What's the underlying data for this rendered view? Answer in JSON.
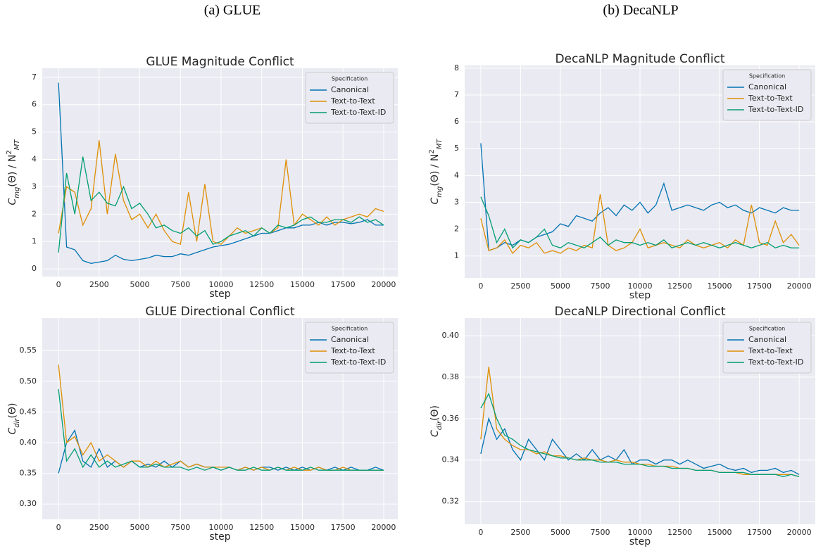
{
  "captions": [
    "(a) GLUE",
    "(b) DecaNLP"
  ],
  "chart_data": [
    {
      "type": "line",
      "title": "GLUE Magnitude Conflict",
      "xlabel": "step",
      "ylabel": [
        [
          "C",
          ""
        ],
        [
          "mg",
          "sub"
        ],
        [
          "(Θ) / N",
          ""
        ],
        [
          "2",
          "sup"
        ],
        [
          "MT",
          "sub"
        ]
      ],
      "legend_title": "Specification",
      "legend": "upper right",
      "grid": true,
      "xlim": [
        -1000,
        20870
      ],
      "ylim": [
        -0.28,
        7.33
      ],
      "xticks": [
        0,
        2500,
        5000,
        7500,
        10000,
        12500,
        15000,
        17500,
        20000
      ],
      "yticks": [
        0,
        1,
        2,
        3,
        4,
        5,
        6,
        7
      ],
      "x": [
        0,
        500,
        1000,
        1500,
        2000,
        2500,
        3000,
        3500,
        4000,
        4500,
        5000,
        5500,
        6000,
        6500,
        7000,
        7500,
        8000,
        8500,
        9000,
        9500,
        10000,
        10500,
        11000,
        11500,
        12000,
        12500,
        13000,
        13500,
        14000,
        14500,
        15000,
        15500,
        16000,
        16500,
        17000,
        17500,
        18000,
        18500,
        19000,
        19500,
        20000
      ],
      "series": [
        {
          "name": "Canonical",
          "color": "#0173b2",
          "values": [
            6.8,
            0.8,
            0.7,
            0.3,
            0.2,
            0.25,
            0.3,
            0.5,
            0.35,
            0.3,
            0.35,
            0.4,
            0.5,
            0.45,
            0.45,
            0.55,
            0.5,
            0.6,
            0.7,
            0.8,
            0.85,
            0.9,
            1.0,
            1.1,
            1.2,
            1.3,
            1.3,
            1.4,
            1.5,
            1.5,
            1.6,
            1.6,
            1.7,
            1.6,
            1.7,
            1.7,
            1.65,
            1.7,
            1.8,
            1.6,
            1.6
          ]
        },
        {
          "name": "Text-to-Text",
          "color": "#de8f05",
          "values": [
            1.3,
            3.0,
            2.8,
            1.6,
            2.2,
            4.7,
            2.0,
            4.2,
            2.5,
            1.8,
            2.0,
            1.5,
            2.0,
            1.4,
            1.0,
            0.9,
            2.8,
            1.0,
            3.1,
            1.0,
            0.9,
            1.2,
            1.5,
            1.3,
            1.4,
            1.5,
            1.3,
            1.5,
            4.0,
            1.6,
            2.0,
            1.8,
            1.6,
            1.9,
            1.6,
            1.8,
            1.9,
            2.0,
            1.9,
            2.2,
            2.1
          ]
        },
        {
          "name": "Text-to-Text-ID",
          "color": "#029e73",
          "values": [
            0.6,
            3.5,
            2.0,
            4.1,
            2.5,
            2.8,
            2.4,
            2.3,
            3.0,
            2.2,
            2.4,
            2.0,
            1.5,
            1.6,
            1.4,
            1.3,
            1.5,
            1.2,
            1.4,
            0.9,
            1.0,
            1.2,
            1.3,
            1.4,
            1.2,
            1.5,
            1.3,
            1.6,
            1.5,
            1.6,
            1.8,
            1.9,
            1.7,
            1.7,
            1.8,
            1.8,
            1.7,
            1.9,
            1.7,
            1.8,
            1.6
          ]
        }
      ]
    },
    {
      "type": "line",
      "title": "DecaNLP Magnitude Conflict",
      "xlabel": "step",
      "ylabel": [
        [
          "C",
          ""
        ],
        [
          "mg",
          "sub"
        ],
        [
          "(Θ) / N",
          ""
        ],
        [
          "2",
          "sup"
        ],
        [
          "MT",
          "sub"
        ]
      ],
      "legend_title": "Specification",
      "legend": "upper right",
      "grid": true,
      "xlim": [
        -1013,
        21013
      ],
      "ylim": [
        0.18,
        8.1
      ],
      "xticks": [
        0,
        2500,
        5000,
        7500,
        10000,
        12500,
        15000,
        17500,
        20000
      ],
      "yticks": [
        1,
        2,
        3,
        4,
        5,
        6,
        7,
        8
      ],
      "x": [
        0,
        500,
        1000,
        1500,
        2000,
        2500,
        3000,
        3500,
        4000,
        4500,
        5000,
        5500,
        6000,
        6500,
        7000,
        7500,
        8000,
        8500,
        9000,
        9500,
        10000,
        10500,
        11000,
        11500,
        12000,
        12500,
        13000,
        13500,
        14000,
        14500,
        15000,
        15500,
        16000,
        16500,
        17000,
        17500,
        18000,
        18500,
        19000,
        19500,
        20000
      ],
      "series": [
        {
          "name": "Canonical",
          "color": "#0173b2",
          "values": [
            5.2,
            1.2,
            1.3,
            1.5,
            1.4,
            1.6,
            1.5,
            1.7,
            1.8,
            1.9,
            2.2,
            2.1,
            2.5,
            2.4,
            2.3,
            2.6,
            2.8,
            2.5,
            2.9,
            2.7,
            3.0,
            2.6,
            2.9,
            3.7,
            2.7,
            2.8,
            2.9,
            2.8,
            2.7,
            2.9,
            3.0,
            2.8,
            2.9,
            2.7,
            2.6,
            2.8,
            2.7,
            2.6,
            2.8,
            2.7,
            2.7
          ]
        },
        {
          "name": "Text-to-Text",
          "color": "#de8f05",
          "values": [
            2.4,
            1.2,
            1.3,
            1.6,
            1.1,
            1.4,
            1.3,
            1.5,
            1.1,
            1.2,
            1.1,
            1.3,
            1.2,
            1.4,
            1.3,
            3.3,
            1.4,
            1.2,
            1.3,
            1.5,
            2.0,
            1.3,
            1.4,
            1.5,
            1.4,
            1.3,
            1.6,
            1.4,
            1.3,
            1.4,
            1.5,
            1.3,
            1.6,
            1.4,
            2.9,
            1.5,
            1.4,
            2.3,
            1.5,
            1.8,
            1.4
          ]
        },
        {
          "name": "Text-to-Text-ID",
          "color": "#029e73",
          "values": [
            3.2,
            2.5,
            1.5,
            2.0,
            1.3,
            1.6,
            1.5,
            1.7,
            2.0,
            1.4,
            1.3,
            1.5,
            1.4,
            1.3,
            1.5,
            1.7,
            1.4,
            1.6,
            1.5,
            1.5,
            1.4,
            1.5,
            1.4,
            1.6,
            1.3,
            1.4,
            1.5,
            1.4,
            1.5,
            1.4,
            1.3,
            1.4,
            1.5,
            1.4,
            1.3,
            1.4,
            1.5,
            1.3,
            1.4,
            1.3,
            1.3
          ]
        }
      ]
    },
    {
      "type": "line",
      "title": "GLUE Directional Conflict",
      "xlabel": "step",
      "ylabel": [
        [
          "C",
          ""
        ],
        [
          "dir",
          "sub"
        ],
        [
          "(Θ)",
          ""
        ]
      ],
      "legend_title": "Specification",
      "legend": "upper right",
      "grid": true,
      "xlim": [
        -1000,
        20870
      ],
      "ylim": [
        0.275,
        0.603
      ],
      "xticks": [
        0,
        2500,
        5000,
        7500,
        10000,
        12500,
        15000,
        17500,
        20000
      ],
      "yticks": [
        {
          "value": 0.3,
          "label": "0.30"
        },
        0.35,
        {
          "value": 0.4,
          "label": "0.40"
        },
        0.45,
        {
          "value": 0.5,
          "label": "0.50"
        },
        0.55
      ],
      "x": [
        0,
        500,
        1000,
        1500,
        2000,
        2500,
        3000,
        3500,
        4000,
        4500,
        5000,
        5500,
        6000,
        6500,
        7000,
        7500,
        8000,
        8500,
        9000,
        9500,
        10000,
        10500,
        11000,
        11500,
        12000,
        12500,
        13000,
        13500,
        14000,
        14500,
        15000,
        15500,
        16000,
        16500,
        17000,
        17500,
        18000,
        18500,
        19000,
        19500,
        20000
      ],
      "series": [
        {
          "name": "Canonical",
          "color": "#0173b2",
          "values": [
            0.35,
            0.4,
            0.42,
            0.37,
            0.36,
            0.39,
            0.36,
            0.37,
            0.36,
            0.37,
            0.36,
            0.365,
            0.36,
            0.37,
            0.36,
            0.37,
            0.36,
            0.365,
            0.36,
            0.36,
            0.355,
            0.36,
            0.355,
            0.36,
            0.355,
            0.36,
            0.36,
            0.355,
            0.36,
            0.355,
            0.36,
            0.355,
            0.36,
            0.355,
            0.36,
            0.355,
            0.36,
            0.355,
            0.355,
            0.36,
            0.355
          ]
        },
        {
          "name": "Text-to-Text",
          "color": "#de8f05",
          "values": [
            0.527,
            0.4,
            0.41,
            0.38,
            0.4,
            0.37,
            0.38,
            0.37,
            0.36,
            0.37,
            0.37,
            0.36,
            0.37,
            0.36,
            0.365,
            0.37,
            0.36,
            0.365,
            0.36,
            0.36,
            0.36,
            0.36,
            0.355,
            0.36,
            0.355,
            0.36,
            0.355,
            0.36,
            0.355,
            0.36,
            0.355,
            0.355,
            0.36,
            0.355,
            0.355,
            0.36,
            0.355,
            0.355,
            0.355,
            0.355,
            0.355
          ]
        },
        {
          "name": "Text-to-Text-ID",
          "color": "#029e73",
          "values": [
            0.487,
            0.37,
            0.39,
            0.36,
            0.38,
            0.36,
            0.37,
            0.36,
            0.365,
            0.37,
            0.36,
            0.36,
            0.365,
            0.36,
            0.36,
            0.36,
            0.355,
            0.36,
            0.355,
            0.36,
            0.355,
            0.36,
            0.355,
            0.355,
            0.36,
            0.355,
            0.355,
            0.36,
            0.355,
            0.355,
            0.355,
            0.36,
            0.355,
            0.355,
            0.355,
            0.355,
            0.355,
            0.355,
            0.355,
            0.355,
            0.355
          ]
        }
      ]
    },
    {
      "type": "line",
      "title": "DecaNLP Directional Conflict",
      "xlabel": "step",
      "ylabel": [
        [
          "C",
          ""
        ],
        [
          "dir",
          "sub"
        ],
        [
          "(Θ)",
          ""
        ]
      ],
      "legend_title": "Specification",
      "legend": "upper right",
      "grid": true,
      "xlim": [
        -1013,
        21013
      ],
      "ylim": [
        0.309,
        0.4085
      ],
      "xticks": [
        0,
        2500,
        5000,
        7500,
        10000,
        12500,
        15000,
        17500,
        20000
      ],
      "yticks": [
        0.32,
        0.34,
        0.36,
        0.38,
        {
          "value": 0.4,
          "label": "0.40"
        }
      ],
      "x": [
        0,
        500,
        1000,
        1500,
        2000,
        2500,
        3000,
        3500,
        4000,
        4500,
        5000,
        5500,
        6000,
        6500,
        7000,
        7500,
        8000,
        8500,
        9000,
        9500,
        10000,
        10500,
        11000,
        11500,
        12000,
        12500,
        13000,
        13500,
        14000,
        14500,
        15000,
        15500,
        16000,
        16500,
        17000,
        17500,
        18000,
        18500,
        19000,
        19500,
        20000
      ],
      "series": [
        {
          "name": "Canonical",
          "color": "#0173b2",
          "values": [
            0.343,
            0.36,
            0.35,
            0.355,
            0.345,
            0.34,
            0.35,
            0.345,
            0.34,
            0.35,
            0.345,
            0.34,
            0.343,
            0.34,
            0.345,
            0.34,
            0.342,
            0.34,
            0.345,
            0.338,
            0.34,
            0.34,
            0.338,
            0.34,
            0.34,
            0.338,
            0.34,
            0.338,
            0.336,
            0.337,
            0.338,
            0.336,
            0.335,
            0.336,
            0.334,
            0.335,
            0.335,
            0.336,
            0.334,
            0.335,
            0.333
          ]
        },
        {
          "name": "Text-to-Text",
          "color": "#de8f05",
          "values": [
            0.35,
            0.385,
            0.355,
            0.35,
            0.347,
            0.345,
            0.345,
            0.343,
            0.344,
            0.342,
            0.342,
            0.341,
            0.34,
            0.341,
            0.34,
            0.34,
            0.339,
            0.34,
            0.339,
            0.339,
            0.338,
            0.338,
            0.337,
            0.337,
            0.337,
            0.336,
            0.336,
            0.335,
            0.335,
            0.335,
            0.334,
            0.334,
            0.334,
            0.333,
            0.333,
            0.333,
            0.333,
            0.333,
            0.333,
            0.333,
            0.332
          ]
        },
        {
          "name": "Text-to-Text-ID",
          "color": "#029e73",
          "values": [
            0.365,
            0.372,
            0.36,
            0.352,
            0.35,
            0.347,
            0.345,
            0.344,
            0.343,
            0.342,
            0.341,
            0.341,
            0.34,
            0.34,
            0.34,
            0.339,
            0.339,
            0.339,
            0.338,
            0.338,
            0.338,
            0.337,
            0.337,
            0.337,
            0.336,
            0.336,
            0.336,
            0.335,
            0.335,
            0.335,
            0.334,
            0.334,
            0.334,
            0.334,
            0.333,
            0.333,
            0.333,
            0.333,
            0.332,
            0.333,
            0.332
          ]
        }
      ]
    }
  ]
}
